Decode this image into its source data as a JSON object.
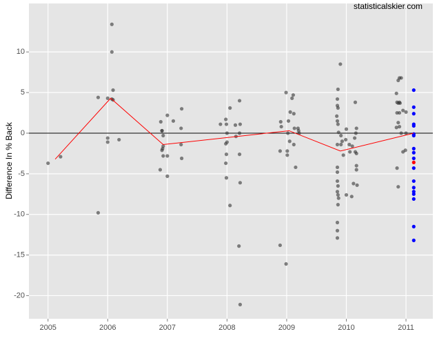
{
  "chart_data": {
    "type": "scatter",
    "watermark": "statisticalskier.com",
    "y_label": "Difference In % Back",
    "xlim": [
      2004.68,
      2011.45
    ],
    "ylim": [
      -22.85,
      15.97
    ],
    "xticks": [
      2005,
      2006,
      2007,
      2008,
      2009,
      2010,
      2011
    ],
    "yticks": [
      -20,
      -15,
      -10,
      -5,
      0,
      5,
      10
    ],
    "hline": 0,
    "grid": true,
    "series": [
      {
        "color": "#333333",
        "x": [
          2005.0,
          2005.21,
          2005.84,
          2005.84,
          2006.0,
          2006.07,
          2006.07,
          2006.09,
          2006.07,
          2006.0,
          2006.0,
          2006.19,
          2006.09,
          2006.89,
          2006.91,
          2006.91,
          2006.93,
          2006.93,
          2006.92,
          2006.91,
          2006.88,
          2006.93,
          2007.0,
          2007.0,
          2007.0,
          2007.1,
          2007.24,
          2007.23,
          2007.23,
          2007.24,
          2007.89,
          2007.98,
          2007.99,
          2008.0,
          2007.98,
          2008.0,
          2007.99,
          2007.98,
          2007.99,
          2008.05,
          2008.05,
          2008.14,
          2008.15,
          2008.21,
          2008.22,
          2008.21,
          2008.21,
          2008.22,
          2008.2,
          2008.22,
          2008.89,
          2008.9,
          2008.91,
          2008.89,
          2008.99,
          2009.01,
          2008.99,
          2009.01,
          2009.02,
          2009.03,
          2009.06,
          2009.09,
          2009.11,
          2009.12,
          2009.12,
          2009.13,
          2009.15,
          2009.19,
          2009.2,
          2009.21,
          2009.05,
          2009.9,
          2009.86,
          2009.85,
          2009.86,
          2009.85,
          2009.84,
          2009.85,
          2009.86,
          2009.87,
          2009.91,
          2009.91,
          2009.85,
          2009.93,
          2009.85,
          2009.85,
          2009.85,
          2009.86,
          2009.85,
          2009.86,
          2009.86,
          2009.85,
          2009.85,
          2009.85,
          2009.87,
          2009.95,
          2009.99,
          2010.0,
          2010.0,
          2010.05,
          2010.06,
          2010.09,
          2010.12,
          2010.14,
          2010.15,
          2010.16,
          2010.17,
          2010.17,
          2010.17,
          2010.17,
          2010.18,
          2010.15,
          2010.1,
          2010.84,
          2010.87,
          2010.89,
          2010.92,
          2010.85,
          2010.87,
          2010.89,
          2010.9,
          2010.85,
          2010.89,
          2010.84,
          2010.87,
          2010.89,
          2010.92,
          2010.85,
          2010.87,
          2010.95,
          2010.95,
          2011.0,
          2010.99,
          2011.0
        ],
        "values": [
          -3.7,
          -2.9,
          -9.8,
          4.4,
          4.3,
          13.4,
          10.0,
          5.3,
          4.2,
          -0.6,
          -1.1,
          -0.8,
          4.1,
          1.4,
          0.3,
          0.3,
          -0.3,
          -1.6,
          -1.9,
          -2.1,
          -4.5,
          -2.8,
          2.2,
          -2.8,
          -5.3,
          1.5,
          3.0,
          0.6,
          -1.4,
          -3.1,
          1.1,
          1.7,
          1.1,
          0.0,
          -1.3,
          -1.1,
          -2.6,
          -3.7,
          -5.5,
          -8.9,
          3.1,
          1.0,
          -0.4,
          4.0,
          1.1,
          0.0,
          -2.6,
          -6.1,
          -13.9,
          -21.1,
          -13.8,
          1.4,
          0.8,
          -2.2,
          5.0,
          -2.2,
          -16.1,
          -2.7,
          0.0,
          1.5,
          2.6,
          4.3,
          4.7,
          2.4,
          -1.4,
          0.6,
          -4.2,
          0.6,
          0.3,
          0.0,
          -1.0,
          8.5,
          5.4,
          4.2,
          3.1,
          3.4,
          2.1,
          1.5,
          1.1,
          0.1,
          -0.3,
          -1.4,
          -1.4,
          -1.0,
          -4.2,
          -4.8,
          -5.9,
          -6.5,
          -7.2,
          -7.6,
          -8.8,
          -11.0,
          -12.0,
          -12.9,
          -8.0,
          -2.7,
          -0.8,
          0.5,
          -7.6,
          -1.4,
          -2.3,
          -7.8,
          -6.2,
          -0.6,
          3.8,
          0.0,
          0.6,
          -2.5,
          -4.0,
          -4.5,
          -6.4,
          -2.3,
          -1.6,
          4.9,
          6.5,
          6.8,
          6.8,
          3.8,
          3.7,
          3.8,
          3.7,
          2.5,
          2.5,
          0.7,
          1.3,
          0.8,
          0.0,
          -4.3,
          -6.6,
          -2.3,
          2.8,
          2.6,
          -2.1,
          0.0
        ]
      },
      {
        "color": "#0000ff",
        "x": [
          2011.13,
          2011.13,
          2011.13,
          2011.13,
          2011.13,
          2011.13,
          2011.13,
          2011.13,
          2011.13,
          2011.13,
          2011.13,
          2011.13,
          2011.13,
          2011.13,
          2011.13,
          2011.13,
          2011.13,
          2011.13
        ],
        "values": [
          5.3,
          3.2,
          2.4,
          1.1,
          0.9,
          -0.1,
          -0.3,
          -1.9,
          -2.4,
          -3.1,
          -4.3,
          -5.9,
          -6.7,
          -7.2,
          -7.5,
          -8.1,
          -11.5,
          -13.2
        ]
      },
      {
        "color": "#ff0000",
        "x": [
          2011.13
        ],
        "values": [
          -3.6
        ]
      },
      {
        "type": "line",
        "color": "#ff0000",
        "x": [
          2005.12,
          2006.05,
          2006.93,
          2009.04,
          2009.9,
          2011.13
        ],
        "values": [
          -3.2,
          4.3,
          -1.4,
          0.3,
          -2.2,
          0.0
        ]
      }
    ]
  }
}
